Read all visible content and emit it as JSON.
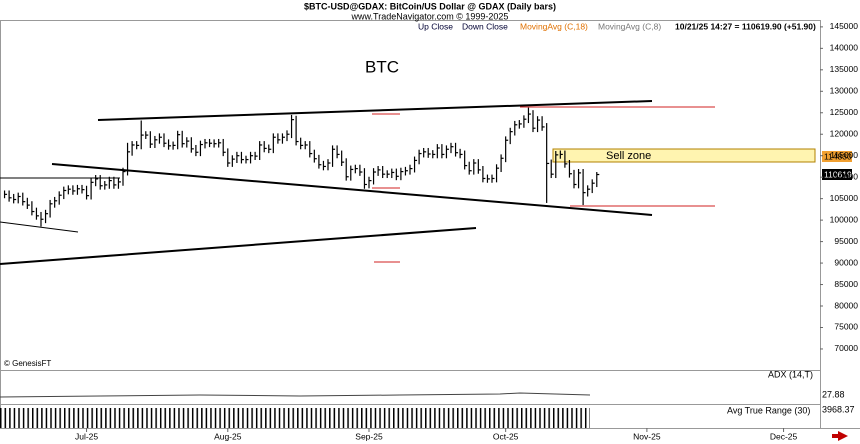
{
  "chart_data": {
    "type": "hlc",
    "title": "$BTC-USD@GDAX:  BitCoin/US Dollar @ GDAX  (Daily bars)",
    "subtitle": "www.TradeNavigator.com © 1999-2025",
    "legend": [
      "Up Close",
      "Down Close",
      "MovingAvg (C,18)",
      "MovingAvg (C,8)"
    ],
    "quote": "10/21/25 14:27 = 110619.90 (+51.90)",
    "annotations": {
      "symbol": "BTC",
      "zone": "Sell zone",
      "credit": "© GenesisFT",
      "ma_badge": "114830",
      "last_badge": "110619"
    },
    "indicators": [
      {
        "name": "ADX (14,T)",
        "value_label": "27.88"
      },
      {
        "name": "Avg True Range (30)",
        "value_label": "3968.37"
      }
    ],
    "color": "#000000",
    "xlim": [
      -1,
      179
    ],
    "xticks": [
      {
        "value": 18,
        "label": "Jul-25"
      },
      {
        "value": 49,
        "label": "Aug-25"
      },
      {
        "value": 80,
        "label": "Sep-25"
      },
      {
        "value": 110,
        "label": "Oct-25"
      },
      {
        "value": 141,
        "label": "Nov-25"
      },
      {
        "value": 171,
        "label": "Dec-25"
      }
    ],
    "ylim": [
      65100,
      146600
    ],
    "yticks": [
      70000,
      75000,
      80000,
      85000,
      90000,
      95000,
      100000,
      105000,
      110000,
      115000,
      120000,
      125000,
      130000,
      135000,
      140000,
      145000
    ],
    "high": [
      106900,
      106900,
      106100,
      106400,
      106400,
      105200,
      104400,
      102900,
      101900,
      102400,
      104700,
      105400,
      106700,
      107800,
      108100,
      108100,
      108200,
      108200,
      108000,
      109700,
      110500,
      110500,
      109100,
      110100,
      110100,
      109800,
      112200,
      118000,
      118400,
      118400,
      123200,
      120700,
      120700,
      119600,
      120200,
      120200,
      118800,
      118300,
      120800,
      120800,
      119300,
      119300,
      117500,
      118500,
      118900,
      118900,
      118800,
      118900,
      118900,
      116700,
      115100,
      115900,
      115900,
      115000,
      115900,
      115900,
      118400,
      118400,
      117600,
      120200,
      120200,
      120200,
      120900,
      124500,
      124300,
      119200,
      118400,
      118400,
      116400,
      115200,
      113800,
      114200,
      117400,
      117400,
      116200,
      114400,
      112700,
      112900,
      112900,
      112100,
      110100,
      112100,
      112600,
      112600,
      111600,
      112000,
      112000,
      112200,
      112400,
      112900,
      114800,
      116400,
      116800,
      116800,
      116300,
      117700,
      117700,
      117400,
      118000,
      118000,
      116600,
      116200,
      113600,
      114200,
      114200,
      112600,
      110600,
      110600,
      113000,
      115300,
      119500,
      121500,
      123100,
      123300,
      124400,
      126200,
      125600,
      124200,
      124200,
      122600,
      114100,
      116100,
      116200,
      116200,
      114000,
      111700,
      111900,
      111900,
      108100,
      109500,
      111200
    ],
    "low": [
      105100,
      104300,
      103900,
      103900,
      103400,
      102600,
      101100,
      100100,
      98500,
      99300,
      100600,
      102900,
      103600,
      104900,
      106000,
      105900,
      105900,
      106200,
      104800,
      104800,
      107900,
      107100,
      107100,
      107300,
      107300,
      107300,
      108000,
      110400,
      115000,
      116500,
      116500,
      118900,
      116800,
      116800,
      117800,
      117000,
      116400,
      116400,
      116500,
      116900,
      116900,
      115700,
      114900,
      114900,
      116700,
      117000,
      116900,
      116900,
      114900,
      112400,
      112400,
      113300,
      113200,
      113200,
      113200,
      114000,
      114000,
      115800,
      115600,
      115600,
      117800,
      117800,
      118400,
      119100,
      117400,
      116500,
      116500,
      114600,
      113400,
      112000,
      111600,
      111600,
      112400,
      114400,
      112600,
      109200,
      109200,
      110900,
      110300,
      107300,
      107400,
      108300,
      110300,
      109800,
      109800,
      109800,
      109300,
      109300,
      110400,
      110600,
      111100,
      113000,
      114600,
      114500,
      114400,
      114400,
      114400,
      114400,
      115600,
      114800,
      114400,
      111800,
      110600,
      110600,
      110800,
      108800,
      108700,
      108700,
      108800,
      111200,
      113500,
      117700,
      119700,
      121300,
      121500,
      122600,
      120500,
      120500,
      120800,
      104000,
      109800,
      109800,
      114300,
      112200,
      109900,
      107400,
      107400,
      103500,
      105500,
      106300,
      107700
    ],
    "close": [
      106000,
      105200,
      104800,
      105500,
      104300,
      103500,
      102000,
      101000,
      100200,
      101500,
      103800,
      104500,
      105800,
      106900,
      107200,
      106800,
      107300,
      107100,
      105700,
      108800,
      109600,
      108000,
      108200,
      109200,
      108200,
      108900,
      111300,
      115900,
      117500,
      117400,
      119800,
      119800,
      117700,
      118700,
      119300,
      117900,
      117300,
      117400,
      119900,
      117800,
      118400,
      116600,
      115800,
      117600,
      118000,
      117900,
      117800,
      118000,
      115800,
      113300,
      114200,
      115000,
      114100,
      114100,
      115000,
      114900,
      117500,
      116700,
      116500,
      119300,
      118700,
      119300,
      120000,
      123400,
      118300,
      117400,
      117500,
      115500,
      114300,
      112900,
      112500,
      113300,
      116500,
      115300,
      113500,
      110100,
      111800,
      112000,
      111200,
      108300,
      109200,
      111200,
      111700,
      110700,
      110700,
      111100,
      110200,
      111300,
      111500,
      112000,
      113900,
      115500,
      115900,
      115400,
      115300,
      116800,
      115300,
      116500,
      117100,
      115700,
      115300,
      112700,
      111500,
      113300,
      111700,
      109700,
      109600,
      109700,
      112100,
      114400,
      118600,
      120600,
      122200,
      122400,
      123500,
      124700,
      121400,
      123300,
      121700,
      113200,
      110700,
      115200,
      115300,
      113100,
      110800,
      108300,
      111000,
      106400,
      107200,
      108600,
      110619
    ]
  }
}
